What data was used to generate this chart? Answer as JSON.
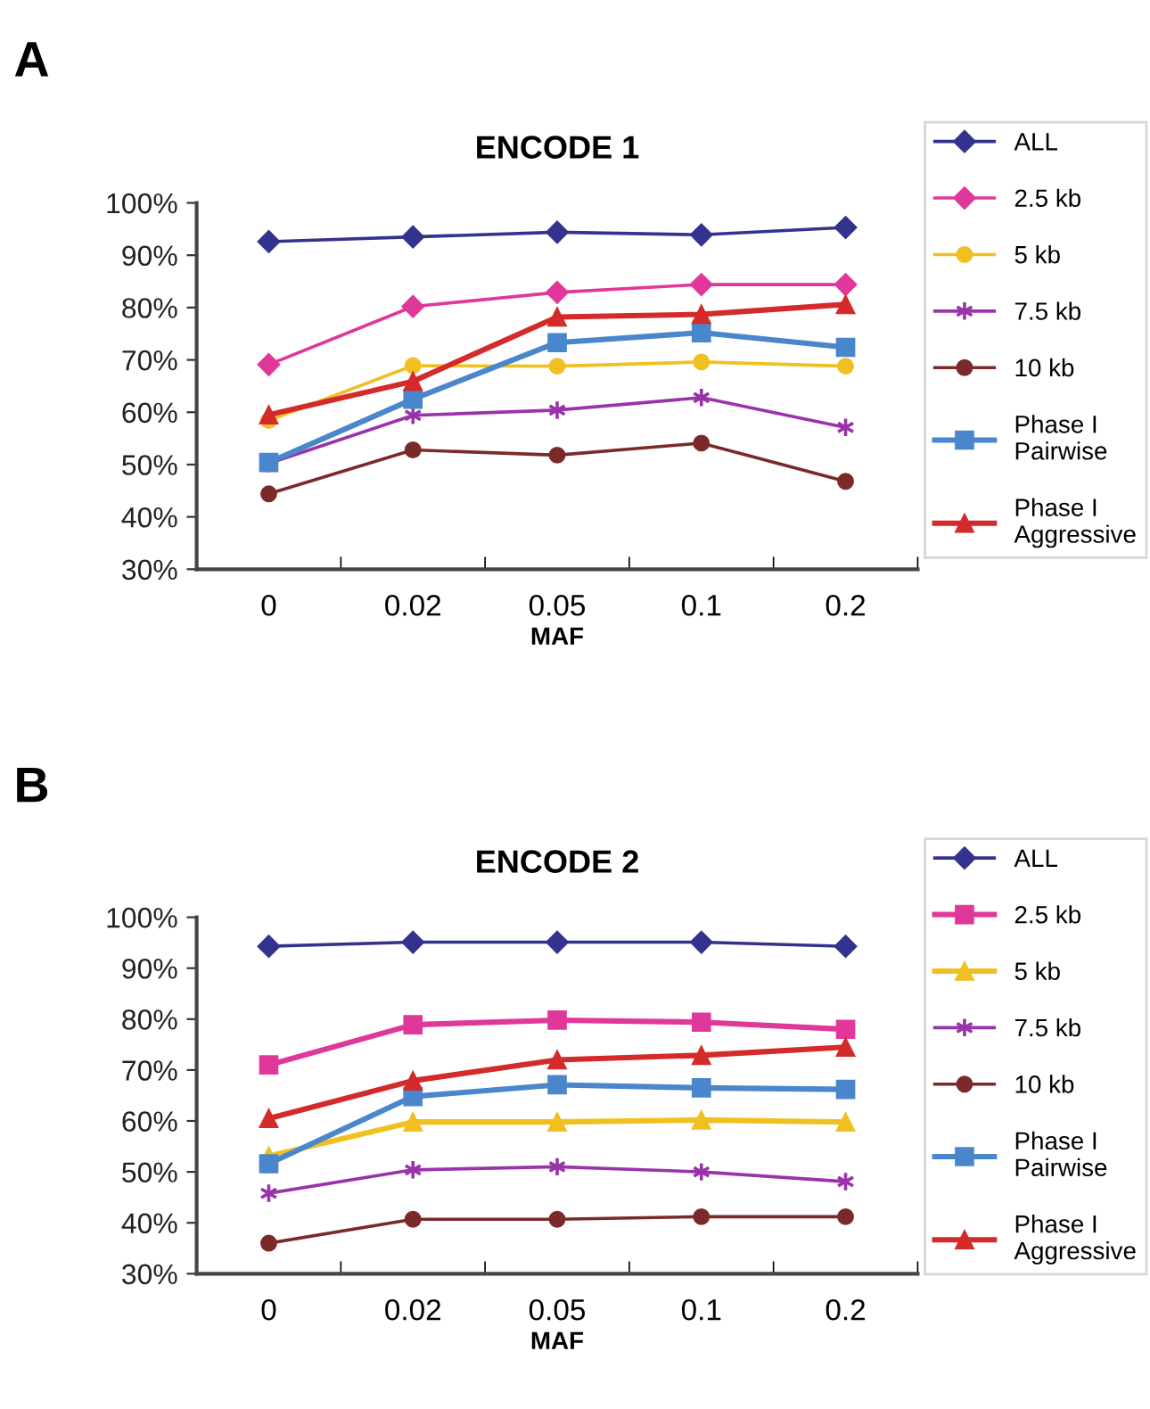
{
  "chart_data": [
    {
      "type": "line",
      "title": "ENCODE 1",
      "xlabel": "MAF",
      "annotations": [
        "A"
      ],
      "categories": [
        "0",
        "0.02",
        "0.05",
        "0.1",
        "0.2"
      ],
      "ylim": [
        30,
        100
      ],
      "yticks": [
        {
          "value": 30,
          "label": "30%"
        },
        {
          "value": 40,
          "label": "40%"
        },
        {
          "value": 50,
          "label": "50%"
        },
        {
          "value": 60,
          "label": "60%"
        },
        {
          "value": 70,
          "label": "70%"
        },
        {
          "value": 80,
          "label": "80%"
        },
        {
          "value": 90,
          "label": "90%"
        },
        {
          "value": 100,
          "label": "100%"
        }
      ],
      "grid": false,
      "legend": "right",
      "series": [
        {
          "name": "ALL",
          "color": "#33338f",
          "marker": "diamond",
          "values": [
            92.6,
            93.5,
            94.4,
            93.9,
            95.3
          ]
        },
        {
          "name": "2.5 kb",
          "color": "#e0389a",
          "marker": "diamond",
          "values": [
            69.1,
            80.2,
            82.9,
            84.4,
            84.4
          ]
        },
        {
          "name": "5 kb",
          "color": "#f0c020",
          "marker": "circle",
          "values": [
            58.4,
            68.9,
            68.8,
            69.6,
            68.8
          ]
        },
        {
          "name": "7.5 kb",
          "color": "#9933aa",
          "marker": "cross",
          "values": [
            50.2,
            59.4,
            60.4,
            62.8,
            57.1
          ]
        },
        {
          "name": "10 kb",
          "color": "#7b2a2a",
          "marker": "circle",
          "values": [
            44.4,
            52.8,
            51.8,
            54.1,
            46.8
          ]
        },
        {
          "name": "Phase I\nPairwise",
          "color": "#4a86cc",
          "marker": "square",
          "values": [
            50.4,
            62.5,
            73.3,
            75.2,
            72.4
          ]
        },
        {
          "name": "Phase I\nAggressive",
          "color": "#d42a2a",
          "marker": "triangle",
          "values": [
            59.5,
            65.9,
            78.2,
            78.7,
            80.6
          ]
        }
      ]
    },
    {
      "type": "line",
      "title": "ENCODE 2",
      "xlabel": "MAF",
      "annotations": [
        "B"
      ],
      "categories": [
        "0",
        "0.02",
        "0.05",
        "0.1",
        "0.2"
      ],
      "ylim": [
        30,
        100
      ],
      "yticks": [
        {
          "value": 30,
          "label": "30%"
        },
        {
          "value": 40,
          "label": "40%"
        },
        {
          "value": 50,
          "label": "50%"
        },
        {
          "value": 60,
          "label": "60%"
        },
        {
          "value": 70,
          "label": "70%"
        },
        {
          "value": 80,
          "label": "80%"
        },
        {
          "value": 90,
          "label": "90%"
        },
        {
          "value": 100,
          "label": "100%"
        }
      ],
      "grid": false,
      "legend": "right",
      "series": [
        {
          "name": "ALL",
          "color": "#33338f",
          "marker": "diamond",
          "values": [
            94.3,
            95.1,
            95.1,
            95.1,
            94.3
          ]
        },
        {
          "name": "2.5 kb",
          "color": "#e0389a",
          "marker": "square",
          "values": [
            71.0,
            78.9,
            79.8,
            79.4,
            78.0
          ]
        },
        {
          "name": "5 kb",
          "color": "#f0c020",
          "marker": "triangle",
          "values": [
            53.1,
            59.8,
            59.8,
            60.2,
            59.8
          ]
        },
        {
          "name": "7.5 kb",
          "color": "#9933aa",
          "marker": "cross",
          "values": [
            45.8,
            50.4,
            51.0,
            50.0,
            48.1
          ]
        },
        {
          "name": "10 kb",
          "color": "#7b2a2a",
          "marker": "circle",
          "values": [
            36.0,
            40.7,
            40.7,
            41.2,
            41.2
          ]
        },
        {
          "name": "Phase I\nPairwise",
          "color": "#4a86cc",
          "marker": "square",
          "values": [
            51.6,
            64.8,
            67.1,
            66.5,
            66.2
          ]
        },
        {
          "name": "Phase I\nAggressive",
          "color": "#d42a2a",
          "marker": "triangle",
          "values": [
            60.5,
            67.9,
            72.0,
            72.9,
            74.5
          ]
        }
      ]
    }
  ]
}
